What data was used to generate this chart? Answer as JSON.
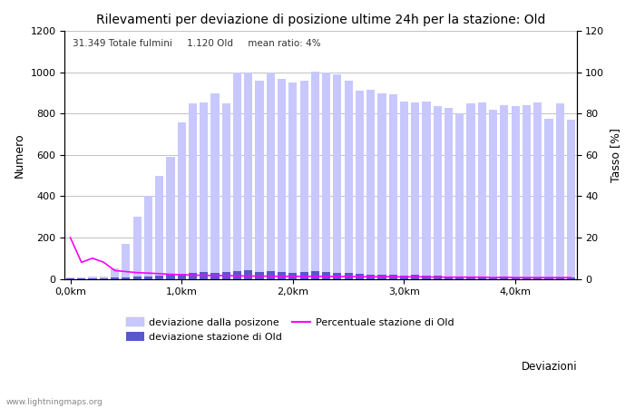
{
  "title": "Rilevamenti per deviazione di posizione ultime 24h per la stazione: Old",
  "subtitle": "31.349 Totale fulmini     1.120 Old     mean ratio: 4%",
  "ylabel_left": "Numero",
  "ylabel_right": "Tasso [%]",
  "xlabel": "Deviazioni",
  "watermark": "www.lightningmaps.org",
  "ylim_left": [
    0,
    1200
  ],
  "ylim_right": [
    0,
    120
  ],
  "x_tick_positions": [
    0,
    10,
    20,
    30,
    40
  ],
  "x_tick_labels": [
    "0,0km",
    "1,0km",
    "2,0km",
    "3,0km",
    "4,0km"
  ],
  "y_left_ticks": [
    0,
    200,
    400,
    600,
    800,
    1000,
    1200
  ],
  "y_right_ticks": [
    0,
    20,
    40,
    60,
    80,
    100,
    120
  ],
  "bar_total": [
    5,
    8,
    12,
    10,
    50,
    170,
    300,
    400,
    500,
    590,
    760,
    850,
    855,
    900,
    850,
    1000,
    1000,
    960,
    1000,
    970,
    950,
    960,
    1005,
    1000,
    990,
    960,
    910,
    915,
    900,
    895,
    860,
    855,
    860,
    835,
    830,
    800,
    850,
    855,
    820,
    840,
    835,
    840,
    855,
    775,
    850,
    770
  ],
  "bar_station": [
    2,
    3,
    4,
    3,
    5,
    8,
    10,
    12,
    15,
    20,
    25,
    30,
    35,
    28,
    32,
    38,
    40,
    35,
    38,
    33,
    30,
    32,
    38,
    35,
    30,
    28,
    25,
    22,
    20,
    18,
    15,
    18,
    16,
    14,
    12,
    10,
    12,
    10,
    8,
    10,
    8,
    7,
    8,
    6,
    7,
    5
  ],
  "ratio_on_left": [
    200,
    80,
    100,
    80,
    40,
    35,
    30,
    28,
    25,
    22,
    20,
    18,
    17,
    16,
    16,
    14,
    14,
    13,
    13,
    12,
    12,
    12,
    12,
    12,
    11,
    11,
    10,
    10,
    10,
    10,
    9,
    10,
    9,
    8,
    8,
    8,
    8,
    8,
    6,
    8,
    6,
    6,
    6,
    6,
    6,
    6
  ],
  "color_total_bar": "#c8c8ff",
  "color_station_bar": "#5858cc",
  "color_ratio_line": "#ff00ff",
  "color_grid": "#aaaaaa",
  "color_background": "#ffffff",
  "legend_labels": [
    "deviazione dalla posizone",
    "deviazione stazione di Old",
    "Percentuale stazione di Old"
  ],
  "bar_width": 0.75,
  "n_bars": 46
}
